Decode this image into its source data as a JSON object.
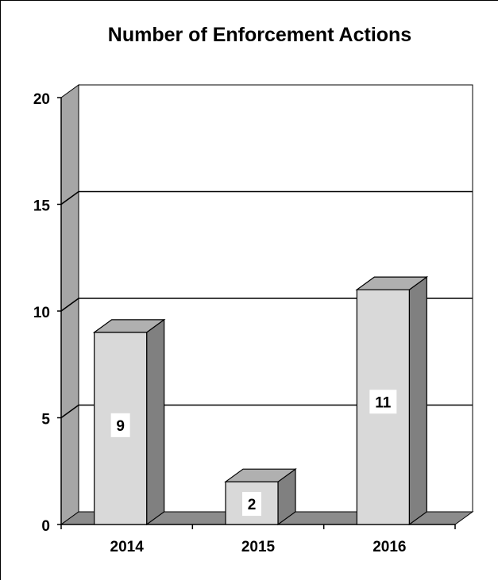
{
  "chart_data": {
    "type": "bar",
    "title": "Number of Enforcement Actions",
    "categories": [
      "2014",
      "2015",
      "2016"
    ],
    "values": [
      9,
      2,
      11
    ],
    "data_labels": [
      "9",
      "2",
      "11"
    ],
    "xlabel": "",
    "ylabel": "",
    "ylim": [
      0,
      20
    ],
    "yticks": [
      0,
      5,
      10,
      15,
      20
    ],
    "ytick_labels": [
      "0",
      "5",
      "10",
      "15",
      "20"
    ],
    "grid": true,
    "legend": "none",
    "style": "3d-column"
  },
  "colors": {
    "bar_front": "#d9d9d9",
    "bar_top": "#b0b0b0",
    "bar_side": "#808080",
    "back_wall": "#ffffff",
    "side_wall": "#a6a6a6",
    "floor": "#8c8c8c",
    "gridline": "#000000"
  }
}
